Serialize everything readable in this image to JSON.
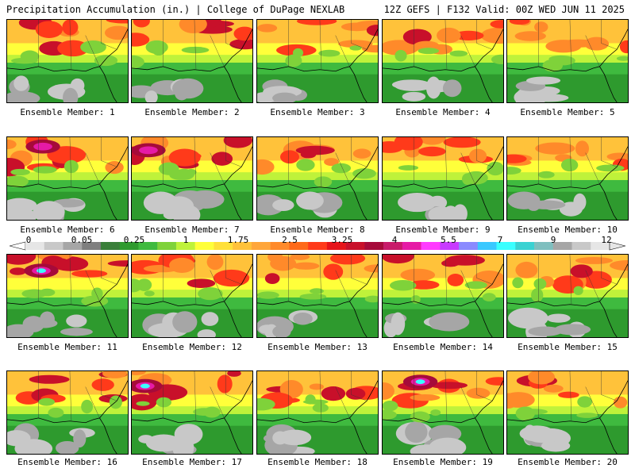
{
  "header": {
    "left": "Precipitation Accumulation (in.) | College of DuPage NEXLAB",
    "right": "12Z GEFS | F132 Valid: 00Z WED JUN 11 2025"
  },
  "colorbar": {
    "labels": [
      "0",
      "0.05",
      "0.25",
      "1",
      "1.75",
      "2.5",
      "3.25",
      "4",
      "5.5",
      "7",
      "9",
      "12"
    ],
    "colors": [
      "#e6e6e6",
      "#c8c8c8",
      "#a6a6a6",
      "#7f7f7f",
      "#3a7f3a",
      "#2e9a2e",
      "#3fba3f",
      "#7fd23a",
      "#bff23a",
      "#ffff3a",
      "#ffe03a",
      "#ffc23a",
      "#ffa63a",
      "#ff8a2a",
      "#ff6a1a",
      "#ff3a1a",
      "#e6141a",
      "#c8102a",
      "#a60a3a",
      "#c81a6a",
      "#e61aa6",
      "#ff3aff",
      "#c83aff",
      "#8a8aff",
      "#3ac8ff",
      "#3affff",
      "#3ad2d2",
      "#7fbfbf",
      "#a6a6a6",
      "#c8c8c8",
      "#e6e6e6"
    ]
  },
  "members": [
    {
      "label": "Ensemble Member: 1",
      "heavy": 0.25
    },
    {
      "label": "Ensemble Member: 2",
      "heavy": 0.3
    },
    {
      "label": "Ensemble Member: 3",
      "heavy": 0.15
    },
    {
      "label": "Ensemble Member: 4",
      "heavy": 0.2
    },
    {
      "label": "Ensemble Member: 5",
      "heavy": 0.25
    },
    {
      "label": "Ensemble Member: 6",
      "heavy": 0.4
    },
    {
      "label": "Ensemble Member: 7",
      "heavy": 0.45
    },
    {
      "label": "Ensemble Member: 8",
      "heavy": 0.3
    },
    {
      "label": "Ensemble Member: 9",
      "heavy": 0.2
    },
    {
      "label": "Ensemble Member: 10",
      "heavy": 0.2
    },
    {
      "label": "Ensemble Member: 11",
      "heavy": 0.5
    },
    {
      "label": "Ensemble Member: 12",
      "heavy": 0.35
    },
    {
      "label": "Ensemble Member: 13",
      "heavy": 0.15
    },
    {
      "label": "Ensemble Member: 14",
      "heavy": 0.3
    },
    {
      "label": "Ensemble Member: 15",
      "heavy": 0.2
    },
    {
      "label": "Ensemble Member: 16",
      "heavy": 0.3
    },
    {
      "label": "Ensemble Member: 17",
      "heavy": 0.5
    },
    {
      "label": "Ensemble Member: 18",
      "heavy": 0.35
    },
    {
      "label": "Ensemble Member: 19",
      "heavy": 0.5
    },
    {
      "label": "Ensemble Member: 20",
      "heavy": 0.25
    }
  ]
}
